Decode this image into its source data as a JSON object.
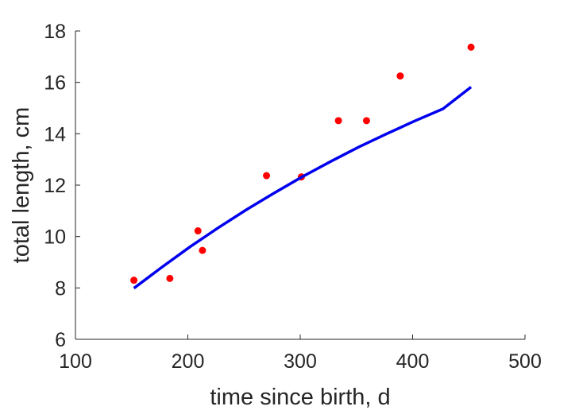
{
  "chart_data": {
    "type": "scatter",
    "title": "",
    "xlabel": "time since birth, d",
    "ylabel": "total length, cm",
    "xlim": [
      100,
      500
    ],
    "ylim": [
      6,
      18
    ],
    "xticks": [
      100,
      200,
      300,
      400,
      500
    ],
    "yticks": [
      6,
      8,
      10,
      12,
      14,
      16,
      18
    ],
    "grid": false,
    "legend": "none",
    "series": [
      {
        "kind": "points",
        "color": "#ff0000",
        "points": [
          {
            "x": 152,
            "y": 8.3
          },
          {
            "x": 184,
            "y": 8.37
          },
          {
            "x": 209,
            "y": 10.22
          },
          {
            "x": 213,
            "y": 9.46
          },
          {
            "x": 270,
            "y": 12.37
          },
          {
            "x": 301,
            "y": 12.32
          },
          {
            "x": 334,
            "y": 14.51
          },
          {
            "x": 359,
            "y": 14.51
          },
          {
            "x": 389,
            "y": 16.25
          },
          {
            "x": 452,
            "y": 17.37
          }
        ]
      },
      {
        "kind": "curve",
        "color": "#0000ee",
        "points": [
          {
            "x": 152,
            "y": 7.99
          },
          {
            "x": 177,
            "y": 8.81
          },
          {
            "x": 202,
            "y": 9.6
          },
          {
            "x": 227,
            "y": 10.34
          },
          {
            "x": 252,
            "y": 11.04
          },
          {
            "x": 277,
            "y": 11.7
          },
          {
            "x": 302,
            "y": 12.33
          },
          {
            "x": 327,
            "y": 12.92
          },
          {
            "x": 352,
            "y": 13.48
          },
          {
            "x": 377,
            "y": 14.0
          },
          {
            "x": 402,
            "y": 14.5
          },
          {
            "x": 427,
            "y": 14.97
          },
          {
            "x": 452,
            "y": 15.82
          }
        ]
      }
    ]
  }
}
